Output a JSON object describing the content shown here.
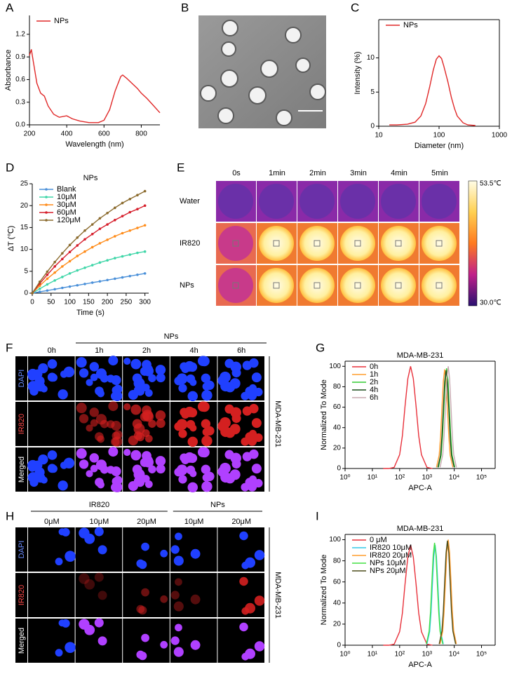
{
  "panel_labels": [
    "A",
    "B",
    "C",
    "D",
    "E",
    "F",
    "G",
    "H",
    "I"
  ],
  "chart_data": [
    {
      "type": "line",
      "xlabel": "Wavelength (nm)",
      "ylabel": "Absorbance",
      "x": [
        200,
        210,
        220,
        240,
        260,
        280,
        300,
        330,
        360,
        400,
        430,
        470,
        520,
        570,
        600,
        630,
        660,
        690,
        700,
        720,
        750,
        780,
        800,
        830,
        860,
        900
      ],
      "series": [
        {
          "name": "NPs",
          "color": "#e02828",
          "values": [
            0.92,
            1.0,
            0.85,
            0.55,
            0.42,
            0.38,
            0.25,
            0.14,
            0.1,
            0.12,
            0.08,
            0.05,
            0.03,
            0.03,
            0.06,
            0.2,
            0.45,
            0.64,
            0.66,
            0.62,
            0.55,
            0.48,
            0.42,
            0.35,
            0.27,
            0.16
          ]
        }
      ],
      "xlim": [
        200,
        900
      ],
      "xticks": [
        200,
        400,
        600,
        800
      ],
      "ylim": [
        0,
        1.45
      ],
      "yticks": [
        {
          "value": 0,
          "label": "0.0"
        },
        0.3,
        0.6,
        0.9,
        1.2
      ],
      "legend": "upper left"
    },
    {
      "type": "line",
      "xlabel": "Diameter (nm)",
      "ylabel": "Intensity (%)",
      "xscale": "log",
      "box": true,
      "x": [
        15,
        20,
        30,
        40,
        50,
        60,
        70,
        80,
        90,
        100,
        110,
        120,
        140,
        160,
        180,
        200,
        250,
        300,
        400
      ],
      "series": [
        {
          "name": "NPs",
          "color": "#e02828",
          "values": [
            0.2,
            0.2,
            0.3,
            0.6,
            1.5,
            3.3,
            5.8,
            8.2,
            9.8,
            10.3,
            9.9,
            8.8,
            6.5,
            4.2,
            2.6,
            1.5,
            0.5,
            0.2,
            0.1
          ]
        }
      ],
      "xlim": [
        10,
        1000
      ],
      "xticks": [
        10,
        100,
        1000
      ],
      "ylim": [
        0,
        15.6
      ],
      "yticks": [
        0,
        5,
        10
      ],
      "legend": "upper left"
    },
    {
      "type": "line",
      "title": "NPs",
      "xlabel": "Time (s)",
      "ylabel": "ΔT (℃)",
      "markers": true,
      "x": [
        0,
        20,
        40,
        60,
        80,
        100,
        120,
        140,
        160,
        180,
        200,
        220,
        240,
        260,
        280,
        300
      ],
      "series": [
        {
          "name": "Blank",
          "color": "#4a90d9",
          "values": [
            0,
            0.3,
            0.6,
            0.9,
            1.2,
            1.5,
            1.8,
            2.1,
            2.4,
            2.7,
            3.0,
            3.3,
            3.6,
            3.9,
            4.2,
            4.5
          ]
        },
        {
          "name": "10μM",
          "color": "#3fd6a8",
          "values": [
            0,
            1.0,
            2.0,
            2.9,
            3.7,
            4.5,
            5.2,
            5.8,
            6.4,
            7.0,
            7.5,
            8.0,
            8.4,
            8.8,
            9.2,
            9.5
          ]
        },
        {
          "name": "30μM",
          "color": "#ff8c1a",
          "values": [
            0,
            1.7,
            3.3,
            4.7,
            6.1,
            7.3,
            8.5,
            9.5,
            10.5,
            11.4,
            12.2,
            13.0,
            13.7,
            14.3,
            14.9,
            15.5
          ]
        },
        {
          "name": "60μM",
          "color": "#d61e2b",
          "values": [
            0,
            2.2,
            4.2,
            6.1,
            7.8,
            9.4,
            10.9,
            12.3,
            13.5,
            14.7,
            15.7,
            16.7,
            17.6,
            18.5,
            19.2,
            20.0
          ]
        },
        {
          "name": "120μM",
          "color": "#8b6b2e",
          "values": [
            0,
            2.6,
            4.9,
            7.1,
            9.1,
            11.0,
            12.7,
            14.3,
            15.7,
            17.1,
            18.3,
            19.5,
            20.6,
            21.5,
            22.4,
            23.3
          ]
        }
      ],
      "xlim": [
        0,
        310
      ],
      "xticks": [
        0,
        50,
        100,
        150,
        200,
        250,
        300
      ],
      "ylim": [
        0,
        25
      ],
      "yticks": [
        0,
        5,
        10,
        15,
        20,
        25
      ],
      "legend": "upper left"
    },
    {
      "type": "line",
      "title": "MDA-MB-231",
      "xlabel": "APC-A",
      "ylabel": "Normalized To Mode",
      "xscale": "log",
      "box": true,
      "series": [
        {
          "name": "0h",
          "color": "#e8303a",
          "x": [
            25,
            40,
            63,
            100,
            126,
            158,
            200,
            251,
            316,
            398,
            501,
            631,
            1000,
            1585
          ],
          "values": [
            0,
            0,
            1.1,
            13.5,
            32,
            61,
            88,
            100,
            88,
            61,
            32,
            13.5,
            1.1,
            0
          ]
        },
        {
          "name": "1h",
          "color": "#ff9d2e",
          "x": [
            2239,
            2818,
            3162,
            3548,
            3981,
            4467,
            5012,
            5623,
            6310,
            7079,
            8913
          ],
          "values": [
            1.1,
            13.1,
            31.5,
            58.9,
            85.6,
            97,
            85.6,
            58.9,
            31.5,
            13.1,
            1.1
          ]
        },
        {
          "name": "2h",
          "color": "#33cc33",
          "x": [
            2630,
            3311,
            3715,
            4169,
            4677,
            5248,
            5888,
            6607,
            7413,
            8318,
            10471
          ],
          "values": [
            1.1,
            13.2,
            31.9,
            59.5,
            86.4,
            98,
            86.4,
            59.5,
            31.9,
            13.2,
            1.1
          ]
        },
        {
          "name": "4h",
          "color": "#1a4d1a",
          "x": [
            2512,
            3162,
            3548,
            3981,
            4467,
            5012,
            5623,
            6310,
            7079,
            7943,
            10000
          ],
          "values": [
            1.1,
            13.0,
            31.2,
            58.3,
            84.7,
            96,
            84.7,
            58.3,
            31.2,
            13.0,
            1.1
          ]
        },
        {
          "name": "6h",
          "color": "#c8a8b0",
          "x": [
            3020,
            3802,
            4266,
            4786,
            5370,
            6026,
            6761,
            7586,
            8511,
            9550,
            12023
          ],
          "values": [
            1.1,
            13.5,
            32.5,
            60.7,
            88.2,
            100,
            88.2,
            60.7,
            32.5,
            13.5,
            1.1
          ]
        }
      ],
      "xlim": [
        1,
        316228
      ],
      "xticks": [
        {
          "value": 1,
          "label": "10⁰"
        },
        {
          "value": 10,
          "label": "10¹"
        },
        {
          "value": 100,
          "label": "10²"
        },
        {
          "value": 1000,
          "label": "10³"
        },
        {
          "value": 10000,
          "label": "10⁴"
        },
        {
          "value": 100000,
          "label": "10⁵"
        }
      ],
      "ylim": [
        0,
        105
      ],
      "yticks": [
        0,
        20,
        40,
        60,
        80,
        100
      ],
      "legend": "upper left"
    },
    {
      "type": "line",
      "title": "MDA-MB-231",
      "xlabel": "APC-A",
      "ylabel": "Normalized To Mode",
      "xscale": "log",
      "box": true,
      "series": [
        {
          "name": "0 μM",
          "color": "#e8303a",
          "x": [
            25,
            40,
            63,
            100,
            126,
            158,
            200,
            251,
            316,
            398,
            501,
            631,
            1000,
            1585
          ],
          "values": [
            0,
            0,
            1.0,
            12.8,
            30.4,
            58,
            83.6,
            95,
            83.6,
            58,
            30.4,
            12.8,
            1.0,
            0
          ]
        },
        {
          "name": "IR820 10μM",
          "color": "#33c8e8",
          "x": [
            1000,
            1259,
            1413,
            1585,
            1778,
            1995,
            2239,
            2512,
            2818,
            3162,
            3981
          ],
          "values": [
            1.0,
            12.8,
            30.9,
            57.7,
            83.8,
            95,
            83.8,
            57.7,
            30.9,
            12.8,
            1.0
          ]
        },
        {
          "name": "IR820 20μM",
          "color": "#ff9d2e",
          "x": [
            3020,
            3802,
            4266,
            4786,
            5370,
            6026,
            6761,
            7586,
            8511,
            9550,
            12023
          ],
          "values": [
            1.1,
            13.5,
            32.5,
            60.7,
            88.2,
            100,
            88.2,
            60.7,
            32.5,
            13.5,
            1.1
          ]
        },
        {
          "name": "NPs 10μM",
          "color": "#44e044",
          "x": [
            955,
            1202,
            1349,
            1514,
            1698,
            1905,
            2138,
            2399,
            2692,
            3020,
            3802
          ],
          "values": [
            1.1,
            13.1,
            31.5,
            58.9,
            85.6,
            97,
            85.6,
            58.9,
            31.5,
            13.1,
            1.1
          ]
        },
        {
          "name": "NPs 20μM",
          "color": "#4d4d1a",
          "x": [
            2818,
            3548,
            3981,
            4467,
            5012,
            5623,
            6310,
            7079,
            7943,
            8913,
            11220
          ],
          "values": [
            1.1,
            13.4,
            32.2,
            60.1,
            87.3,
            99,
            87.3,
            60.1,
            32.2,
            13.4,
            1.1
          ]
        }
      ],
      "xlim": [
        1,
        316228
      ],
      "xticks": [
        {
          "value": 1,
          "label": "10⁰"
        },
        {
          "value": 10,
          "label": "10¹"
        },
        {
          "value": 100,
          "label": "10²"
        },
        {
          "value": 1000,
          "label": "10³"
        },
        {
          "value": 10000,
          "label": "10⁴"
        },
        {
          "value": 100000,
          "label": "10⁵"
        }
      ],
      "ylim": [
        0,
        105
      ],
      "yticks": [
        0,
        20,
        40,
        60,
        80,
        100
      ],
      "legend": "upper left"
    }
  ],
  "thermal_images": {
    "columns": [
      "0s",
      "1min",
      "2min",
      "3min",
      "4min",
      "5min"
    ],
    "rows": [
      "Water",
      "IR820",
      "NPs"
    ],
    "colorbar_max": "53.5℃",
    "colorbar_min": "30.0℃"
  },
  "cell_images_f": {
    "header": "NPs",
    "columns": [
      "0h",
      "1h",
      "2h",
      "4h",
      "6h"
    ],
    "rows": [
      "DAPI",
      "IR820",
      "Merged"
    ],
    "cell_line": "MDA-MB-231"
  },
  "cell_images_h": {
    "groups": [
      {
        "name": "IR820",
        "columns": [
          "0μM",
          "10μM",
          "20μM"
        ]
      },
      {
        "name": "NPs",
        "columns": [
          "10μM",
          "20μM"
        ]
      }
    ],
    "rows": [
      "DAPI",
      "IR820",
      "Merged"
    ],
    "cell_line": "MDA-MB-231"
  }
}
